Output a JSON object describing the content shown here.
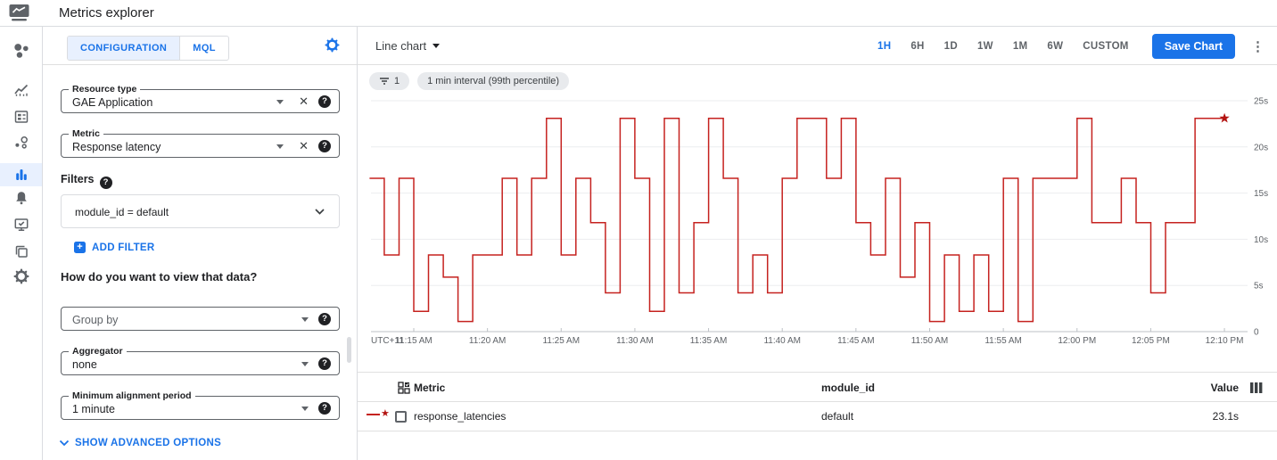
{
  "app_bar": {
    "title": "Metrics explorer",
    "logo_icon": "monitoring-logo-icon"
  },
  "sidebar": {
    "items": [
      {
        "icon": "monitoring-overview-icon",
        "selected": false
      },
      {
        "icon": "dashboards-icon",
        "selected": false
      },
      {
        "icon": "dashboard-list-icon",
        "selected": false
      },
      {
        "icon": "services-icon",
        "selected": false
      },
      {
        "icon": "metrics-explorer-icon",
        "selected": true
      },
      {
        "icon": "alerting-bell-icon",
        "selected": false
      },
      {
        "icon": "uptime-checks-icon",
        "selected": false
      },
      {
        "icon": "groups-icon",
        "selected": false
      },
      {
        "icon": "settings-gear-icon",
        "selected": false
      }
    ]
  },
  "config_panel": {
    "tabs": [
      {
        "label": "CONFIGURATION",
        "selected": true
      },
      {
        "label": "MQL",
        "selected": false
      }
    ],
    "settings_icon": "gear-icon",
    "fields": {
      "resource_type": {
        "label": "Resource type",
        "value": "GAE Application"
      },
      "metric": {
        "label": "Metric",
        "value": "Response latency"
      },
      "group_by": {
        "placeholder": "Group by"
      },
      "aggregator": {
        "label": "Aggregator",
        "value": "none"
      },
      "min_alignment": {
        "label": "Minimum alignment period",
        "value": "1 minute"
      }
    },
    "filters": {
      "label": "Filters",
      "filter_value": "module_id = default",
      "add_filter_label": "ADD FILTER"
    },
    "view_heading": "How do you want to view that data?",
    "advanced_label": "SHOW ADVANCED OPTIONS"
  },
  "chart_header": {
    "chart_type": "Line chart",
    "time_ranges": [
      "1H",
      "6H",
      "1D",
      "1W",
      "1M",
      "6W",
      "CUSTOM"
    ],
    "selected_range": "1H",
    "save_button": "Save Chart",
    "menu_icon": "kebab-menu-icon"
  },
  "chips": [
    {
      "icon": "filter-lines-icon",
      "label": "1"
    },
    {
      "label": "1 min interval (99th percentile)"
    }
  ],
  "chart_data": {
    "type": "line",
    "line_style": "step-after",
    "x_prefix_label": "UTC+11",
    "x_tick_labels": [
      "11:15 AM",
      "11:20 AM",
      "11:25 AM",
      "11:30 AM",
      "11:35 AM",
      "11:40 AM",
      "11:45 AM",
      "11:50 AM",
      "11:55 AM",
      "12:00 PM",
      "12:05 PM",
      "12:10 PM"
    ],
    "y_tick_labels": [
      "25s",
      "20s",
      "15s",
      "10s",
      "5s",
      "0"
    ],
    "ylim": [
      0,
      25
    ],
    "x_start": "11:12 AM",
    "x_interval_minutes": 1,
    "grid": true,
    "legend_position": "table-below",
    "series": [
      {
        "name": "response_latencies",
        "color": "#c5221f",
        "end_marker": "star",
        "end_marker_color": "#b31412",
        "values": [
          16.6,
          8.3,
          16.6,
          2.2,
          8.3,
          5.9,
          1.1,
          8.3,
          8.3,
          16.6,
          8.3,
          16.6,
          23.1,
          8.3,
          16.6,
          11.8,
          4.2,
          23.1,
          16.6,
          2.2,
          23.1,
          4.2,
          11.8,
          23.1,
          16.6,
          4.2,
          8.3,
          4.2,
          16.6,
          23.1,
          23.1,
          16.6,
          23.1,
          11.8,
          8.3,
          16.6,
          5.9,
          11.8,
          1.1,
          8.3,
          2.2,
          8.3,
          2.2,
          16.6,
          1.1,
          16.6,
          16.6,
          16.6,
          23.1,
          11.8,
          11.8,
          16.6,
          11.8,
          4.2,
          11.8,
          11.8,
          23.1,
          23.1
        ]
      }
    ]
  },
  "table": {
    "headers": {
      "metric": "Metric",
      "module_id": "module_id",
      "value": "Value"
    },
    "rows": [
      {
        "metric": "response_latencies",
        "module_id": "default",
        "value": "23.1s",
        "legend_color": "#c5221f",
        "checked": false
      }
    ]
  },
  "colors": {
    "accent": "#1a73e8",
    "accent_bg": "#e8f0fe",
    "line_red": "#c5221f",
    "star_red": "#b31412",
    "border": "#dadce0",
    "text_gray": "#5f6368"
  }
}
